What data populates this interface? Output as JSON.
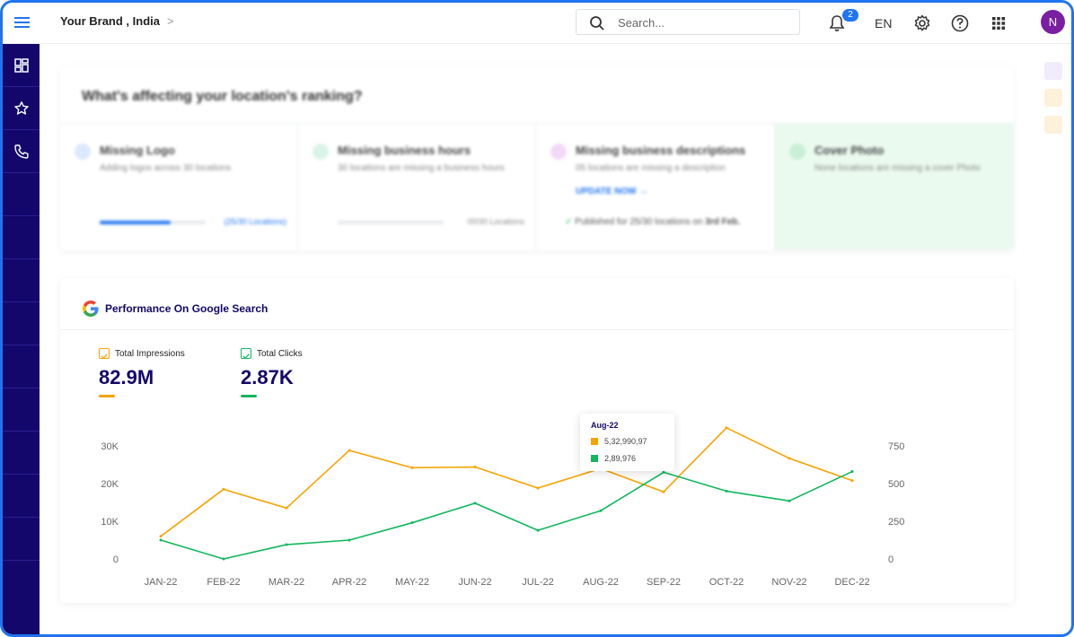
{
  "header": {
    "breadcrumb": "Your Brand , India",
    "search_placeholder": "Search...",
    "notification_count": "2",
    "language": "EN",
    "avatar_initial": "N"
  },
  "sidebar": {
    "items": [
      {
        "icon": "dashboard-icon"
      },
      {
        "icon": "star-icon"
      },
      {
        "icon": "phone-icon"
      }
    ]
  },
  "ranking": {
    "title": "What's affecting your location's ranking?",
    "cards": [
      {
        "title": "Missing Logo",
        "subtitle": "Adding logos across 30 locations",
        "progress_text": "(25/30 Locations)",
        "progress": 0.67
      },
      {
        "title": "Missing business hours",
        "subtitle": "30 locations are missing a business hours",
        "progress_text": "00/30 Locations",
        "progress": 0
      },
      {
        "title": "Missing business descriptions",
        "subtitle": "05 locations are missing a description",
        "link": "UPDATE NOW",
        "published_prefix": "Published for 25/30 locations on ",
        "published_date": "3rd Feb."
      },
      {
        "title": "Cover Photo",
        "subtitle": "None locations are missing a cover Photo"
      }
    ]
  },
  "performance": {
    "title": "Performance On Google Search",
    "metrics": [
      {
        "label": "Total Impressions",
        "value": "82.9M",
        "color": "#f5a300"
      },
      {
        "label": "Total Clicks",
        "value": "2.87K",
        "color": "#10b75c"
      }
    ],
    "tooltip": {
      "title": "Aug-22",
      "impressions": "5,32,990,97",
      "clicks": "2,89,976"
    }
  },
  "chart_data": {
    "type": "line",
    "categories": [
      "JAN-22",
      "FEB-22",
      "MAR-22",
      "APR-22",
      "MAY-22",
      "JUN-22",
      "JUL-22",
      "AUG-22",
      "SEP-22",
      "OCT-22",
      "NOV-22",
      "DEC-22"
    ],
    "series": [
      {
        "name": "Total Impressions",
        "axis": "left",
        "color": "#f5a300",
        "values": [
          6000,
          18500,
          13500,
          28800,
          24200,
          24400,
          18800,
          24000,
          17800,
          34800,
          26700,
          20800
        ]
      },
      {
        "name": "Total Clicks",
        "axis": "right",
        "color": "#10b75c",
        "values": [
          125,
          0,
          95,
          125,
          240,
          370,
          190,
          320,
          575,
          450,
          385,
          580
        ]
      }
    ],
    "y_left": {
      "ticks": [
        "0",
        "10K",
        "20K",
        "30K"
      ],
      "values": [
        0,
        10000,
        20000,
        30000
      ],
      "ylim": [
        0,
        30000
      ]
    },
    "y_right": {
      "ticks": [
        "0",
        "250",
        "500",
        "750"
      ],
      "values": [
        0,
        250,
        500,
        750
      ],
      "ylim": [
        0,
        750
      ]
    },
    "grid": false,
    "legend": "top-left"
  },
  "colors": {
    "sidebar": "#13076b",
    "accent": "#1f74f0",
    "impressions": "#f5a300",
    "clicks": "#10b75c"
  }
}
